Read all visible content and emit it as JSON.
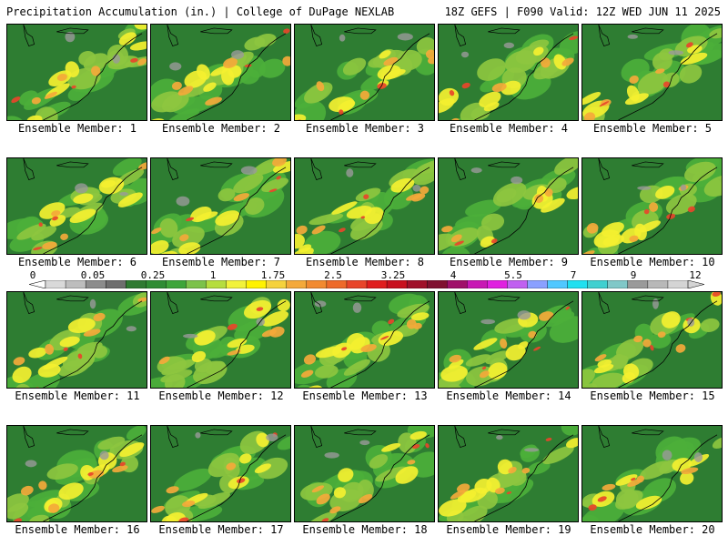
{
  "header": {
    "left_title": "Precipitation Accumulation (in.) | College of DuPage NEXLAB",
    "right_title": "18Z GEFS | F090 Valid: 12Z WED JUN 11 2025"
  },
  "colorbar": {
    "labels": [
      "0",
      "0.05",
      "0.25",
      "1",
      "1.75",
      "2.5",
      "3.25",
      "4",
      "5.5",
      "7",
      "9",
      "12"
    ],
    "colors": [
      "#d9d9d9",
      "#bdbdbd",
      "#8c8c8c",
      "#6e6e6e",
      "#2f7a32",
      "#2f8c34",
      "#3ea53a",
      "#7cc24a",
      "#b6dd3e",
      "#f2f23a",
      "#fff200",
      "#f5d23c",
      "#f4a93a",
      "#f28a30",
      "#ee6a2a",
      "#e8452a",
      "#e01e1e",
      "#c8101e",
      "#a0102a",
      "#801030",
      "#a0106a",
      "#c818b4",
      "#e020e0",
      "#c060f0",
      "#8aa0ff",
      "#50c8ff",
      "#20e0f0",
      "#40d0d0",
      "#80c8c8",
      "#9a9a9a",
      "#b8b8b8",
      "#d4d4d4"
    ]
  },
  "panels": [
    {
      "label": "Ensemble Member: 1"
    },
    {
      "label": "Ensemble Member: 2"
    },
    {
      "label": "Ensemble Member: 3"
    },
    {
      "label": "Ensemble Member: 4"
    },
    {
      "label": "Ensemble Member: 5"
    },
    {
      "label": "Ensemble Member: 6"
    },
    {
      "label": "Ensemble Member: 7"
    },
    {
      "label": "Ensemble Member: 8"
    },
    {
      "label": "Ensemble Member: 9"
    },
    {
      "label": "Ensemble Member: 10"
    },
    {
      "label": "Ensemble Member: 11"
    },
    {
      "label": "Ensemble Member: 12"
    },
    {
      "label": "Ensemble Member: 13"
    },
    {
      "label": "Ensemble Member: 14"
    },
    {
      "label": "Ensemble Member: 15"
    },
    {
      "label": "Ensemble Member: 16"
    },
    {
      "label": "Ensemble Member: 17"
    },
    {
      "label": "Ensemble Member: 18"
    },
    {
      "label": "Ensemble Member: 19"
    },
    {
      "label": "Ensemble Member: 20"
    }
  ],
  "map_colors": {
    "dark_green": "#2e7d32",
    "green": "#4caf3a",
    "light_green": "#8dc63f",
    "yellow": "#f4f030",
    "orange": "#f4a93a",
    "red": "#e8452a",
    "deep_red": "#c8101e",
    "magenta": "#c818b4",
    "gray": "#9a9a9a",
    "coast": "#000000"
  }
}
